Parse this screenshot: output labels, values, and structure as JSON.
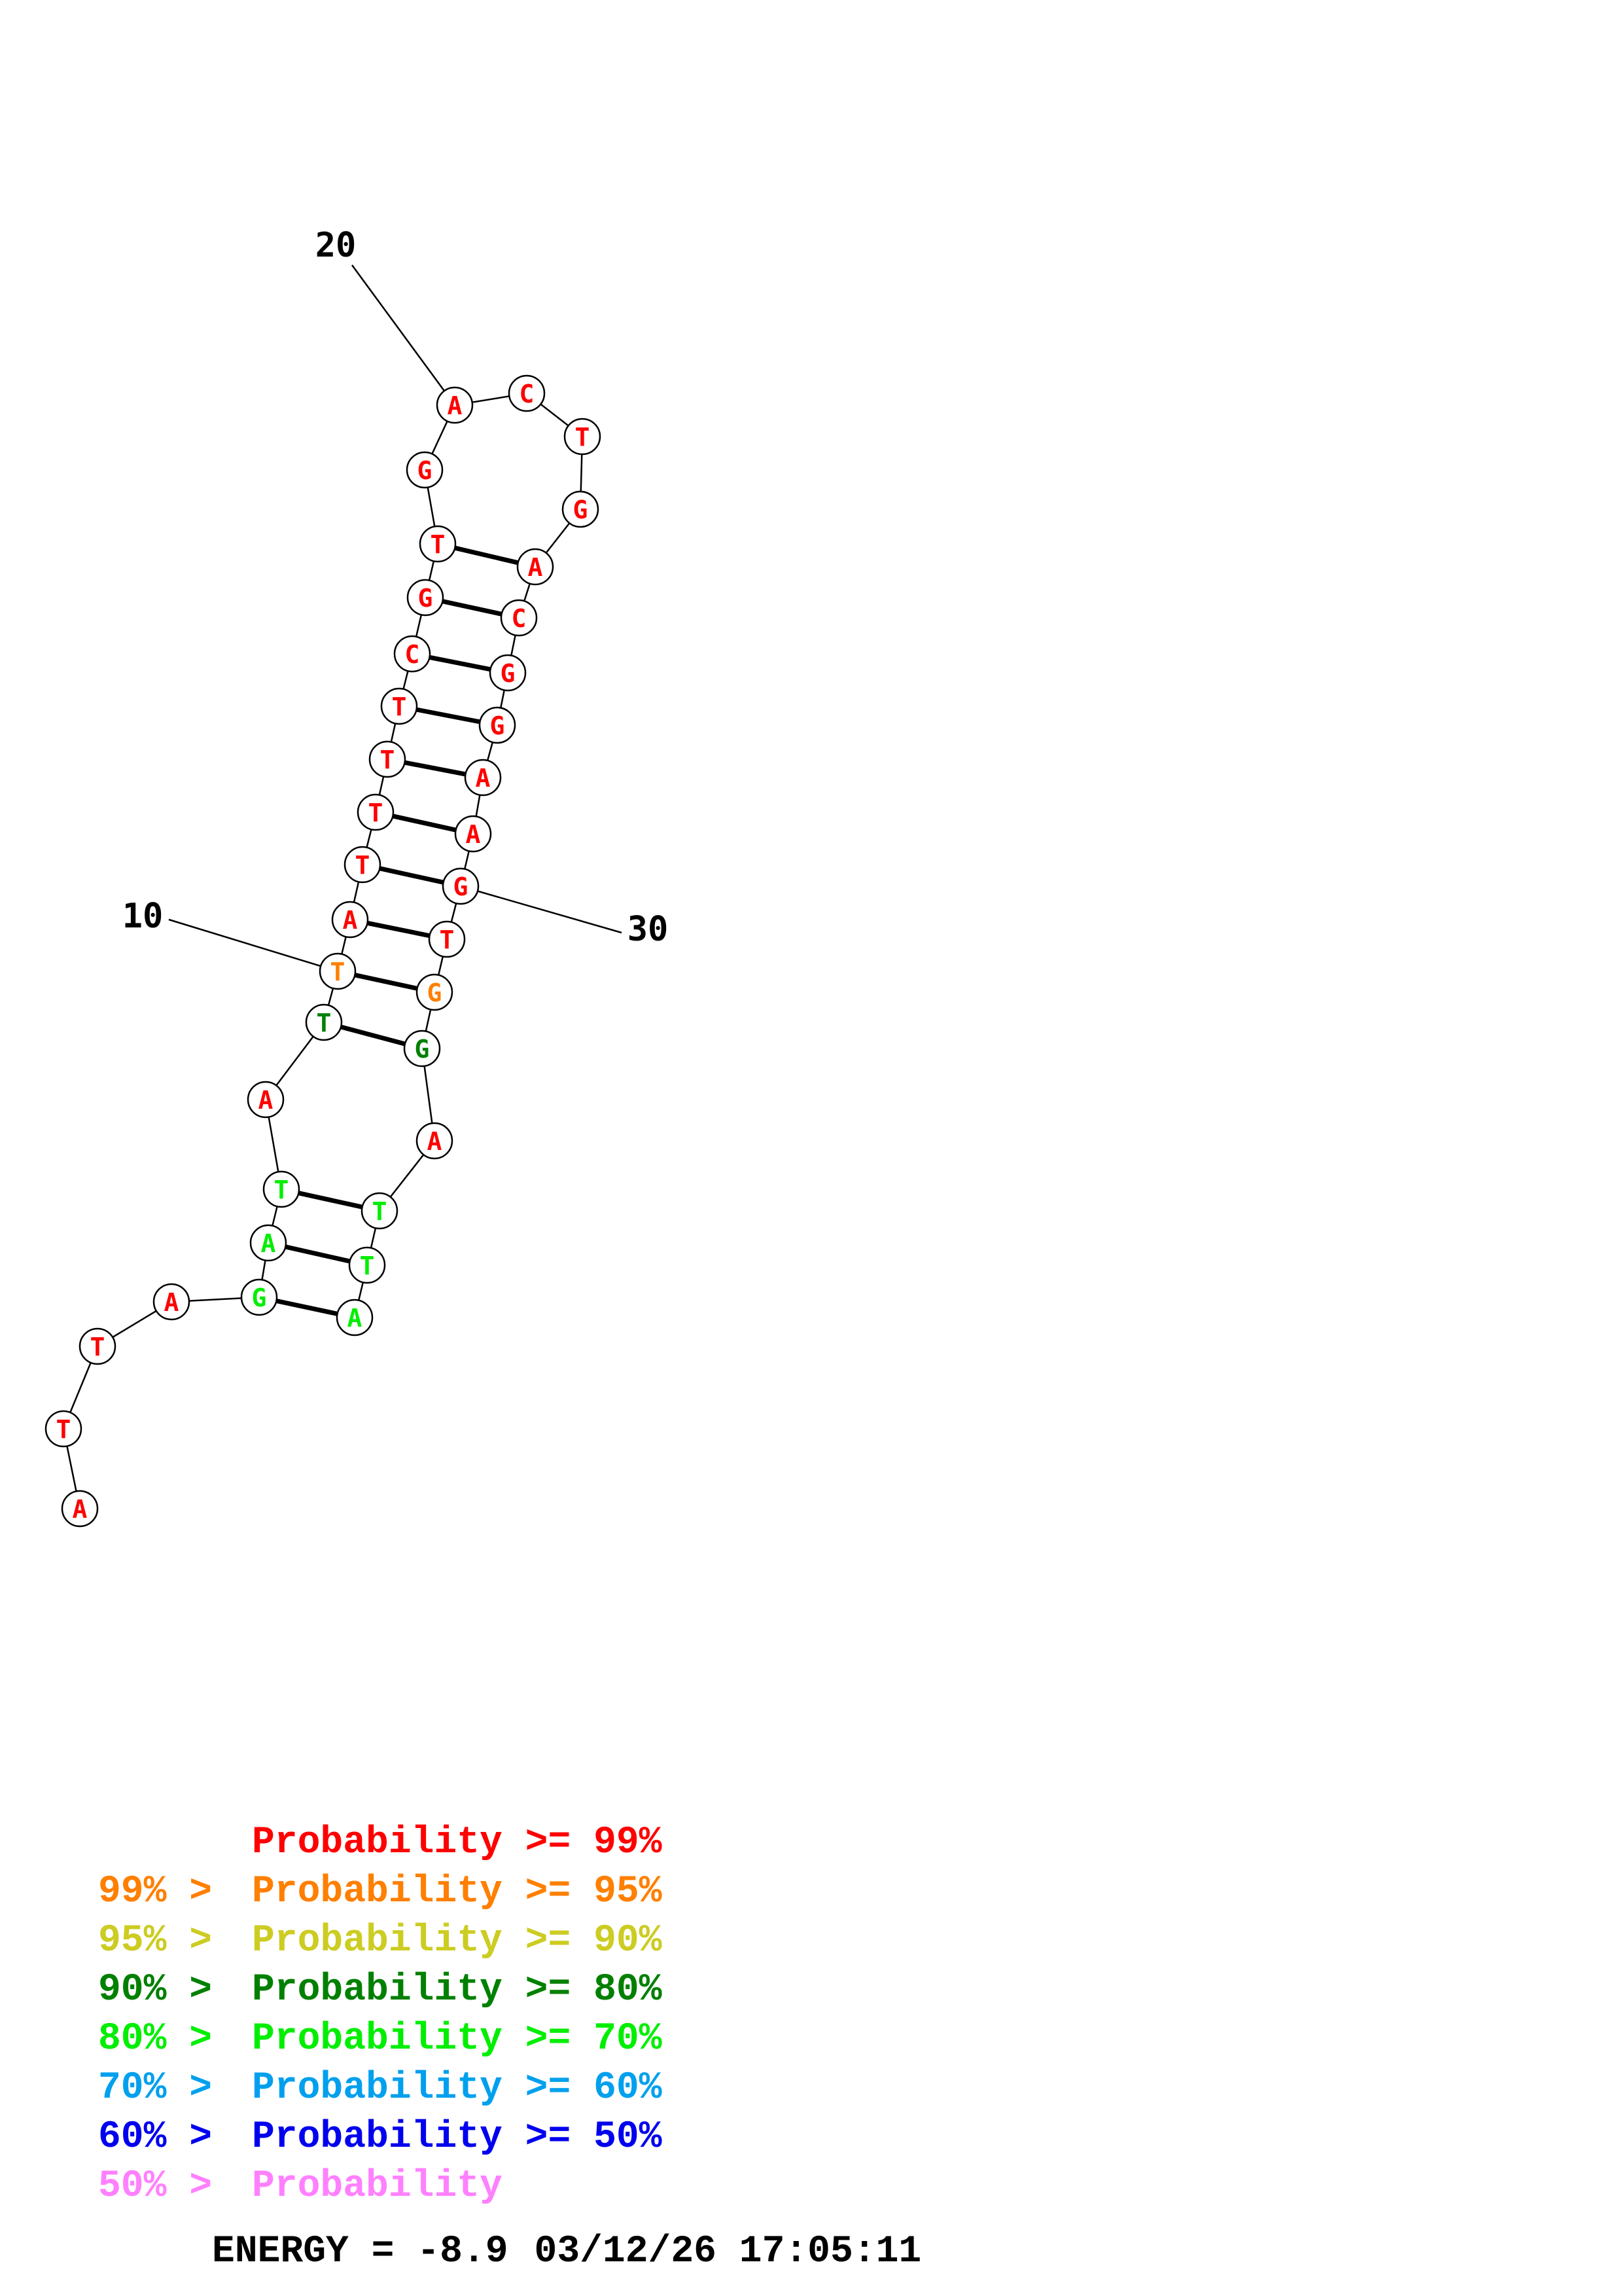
{
  "colors": {
    "p99": "#ff0000",
    "p95": "#ff7f00",
    "p90": "#cccc22",
    "p80": "#008000",
    "p70": "#00ee00",
    "p60": "#00a0ee",
    "p50": "#0000ee",
    "plow": "#ff80ff"
  },
  "structure": {
    "sequence": [
      "A",
      "T",
      "T",
      "A",
      "G",
      "A",
      "T",
      "A",
      "T",
      "T",
      "A",
      "T",
      "T",
      "T",
      "T",
      "C",
      "G",
      "T",
      "G",
      "A",
      "C",
      "T",
      "G",
      "A",
      "C",
      "G",
      "G",
      "A",
      "A",
      "G",
      "T",
      "G",
      "G",
      "A",
      "T",
      "T",
      "A"
    ],
    "color_keys": [
      "p99",
      "p99",
      "p99",
      "p99",
      "p70",
      "p70",
      "p70",
      "p99",
      "p80",
      "p95",
      "p99",
      "p99",
      "p99",
      "p99",
      "p99",
      "p99",
      "p99",
      "p99",
      "p99",
      "p99",
      "p99",
      "p99",
      "p99",
      "p99",
      "p99",
      "p99",
      "p99",
      "p99",
      "p99",
      "p99",
      "p99",
      "p95",
      "p80",
      "p99",
      "p70",
      "p70",
      "p70"
    ],
    "pairs": [
      [
        5,
        37
      ],
      [
        6,
        36
      ],
      [
        7,
        35
      ],
      [
        9,
        33
      ],
      [
        10,
        32
      ],
      [
        11,
        31
      ],
      [
        12,
        30
      ],
      [
        13,
        29
      ],
      [
        14,
        28
      ],
      [
        15,
        27
      ],
      [
        16,
        26
      ],
      [
        17,
        25
      ],
      [
        18,
        24
      ]
    ],
    "number_labels": [
      {
        "index": 10,
        "text": "10"
      },
      {
        "index": 20,
        "text": "20"
      },
      {
        "index": 30,
        "text": "30"
      }
    ]
  },
  "legend": [
    {
      "prefix": "    ",
      "label": "Probability >= 99%",
      "color_key": "p99"
    },
    {
      "prefix": "99% > ",
      "label": "Probability >= 95%",
      "color_key": "p95"
    },
    {
      "prefix": "95% > ",
      "label": "Probability >= 90%",
      "color_key": "p90"
    },
    {
      "prefix": "90% > ",
      "label": "Probability >= 80%",
      "color_key": "p80"
    },
    {
      "prefix": "80% > ",
      "label": "Probability >= 70%",
      "color_key": "p70"
    },
    {
      "prefix": "70% > ",
      "label": "Probability >= 60%",
      "color_key": "p60"
    },
    {
      "prefix": "60% > ",
      "label": "Probability >= 50%",
      "color_key": "p50"
    },
    {
      "prefix": "50% > ",
      "label": "Probability",
      "color_key": "plow"
    }
  ],
  "footer": {
    "energy": "ENERGY = -8.9",
    "timestamp": "03/12/26 17:05:11"
  }
}
